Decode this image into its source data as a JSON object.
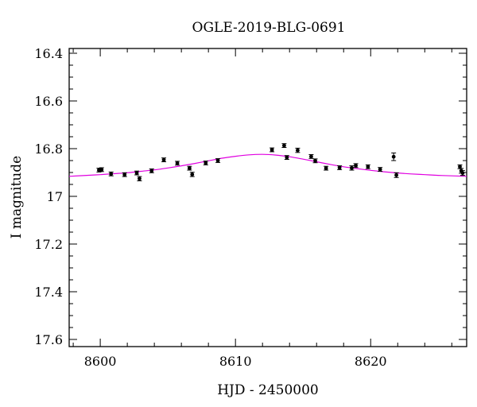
{
  "chart_data": {
    "type": "scatter",
    "title": "OGLE-2019-BLG-0691",
    "xlabel": "HJD - 2450000",
    "ylabel": "I magnitude",
    "xlim": [
      8597.7,
      8627.1
    ],
    "ylim": [
      17.63,
      16.38
    ],
    "y_inverted": true,
    "grid": false,
    "xticks": [
      {
        "value": 8600,
        "label": "8600"
      },
      {
        "value": 8610,
        "label": "8610"
      },
      {
        "value": 8620,
        "label": "8620"
      }
    ],
    "yticks": [
      {
        "value": 16.4,
        "label": "16.4"
      },
      {
        "value": 16.6,
        "label": "16.6"
      },
      {
        "value": 16.8,
        "label": "16.8"
      },
      {
        "value": 17.0,
        "label": "17"
      },
      {
        "value": 17.2,
        "label": "17.2"
      },
      {
        "value": 17.4,
        "label": "17.4"
      },
      {
        "value": 17.6,
        "label": "17.6"
      }
    ],
    "series": [
      {
        "kind": "data-points",
        "color": "#000000",
        "points": [
          {
            "x": 8599.9,
            "y": 16.89,
            "err": 0.008
          },
          {
            "x": 8600.1,
            "y": 16.888,
            "err": 0.008
          },
          {
            "x": 8600.8,
            "y": 16.906,
            "err": 0.008
          },
          {
            "x": 8601.8,
            "y": 16.909,
            "err": 0.008
          },
          {
            "x": 8602.7,
            "y": 16.902,
            "err": 0.008
          },
          {
            "x": 8602.9,
            "y": 16.926,
            "err": 0.009
          },
          {
            "x": 8603.8,
            "y": 16.893,
            "err": 0.008
          },
          {
            "x": 8604.7,
            "y": 16.847,
            "err": 0.008
          },
          {
            "x": 8605.7,
            "y": 16.861,
            "err": 0.008
          },
          {
            "x": 8606.6,
            "y": 16.882,
            "err": 0.008
          },
          {
            "x": 8606.8,
            "y": 16.908,
            "err": 0.009
          },
          {
            "x": 8607.8,
            "y": 16.86,
            "err": 0.008
          },
          {
            "x": 8608.7,
            "y": 16.85,
            "err": 0.008
          },
          {
            "x": 8612.7,
            "y": 16.805,
            "err": 0.008
          },
          {
            "x": 8613.6,
            "y": 16.787,
            "err": 0.008
          },
          {
            "x": 8613.8,
            "y": 16.837,
            "err": 0.008
          },
          {
            "x": 8614.6,
            "y": 16.807,
            "err": 0.009
          },
          {
            "x": 8615.6,
            "y": 16.833,
            "err": 0.008
          },
          {
            "x": 8615.9,
            "y": 16.851,
            "err": 0.008
          },
          {
            "x": 8616.7,
            "y": 16.882,
            "err": 0.008
          },
          {
            "x": 8617.7,
            "y": 16.88,
            "err": 0.008
          },
          {
            "x": 8618.6,
            "y": 16.881,
            "err": 0.009
          },
          {
            "x": 8618.9,
            "y": 16.871,
            "err": 0.008
          },
          {
            "x": 8619.8,
            "y": 16.876,
            "err": 0.008
          },
          {
            "x": 8620.7,
            "y": 16.887,
            "err": 0.008
          },
          {
            "x": 8621.7,
            "y": 16.834,
            "err": 0.016
          },
          {
            "x": 8621.9,
            "y": 16.911,
            "err": 0.01
          },
          {
            "x": 8626.6,
            "y": 16.876,
            "err": 0.008
          },
          {
            "x": 8626.7,
            "y": 16.893,
            "err": 0.01
          },
          {
            "x": 8626.8,
            "y": 16.902,
            "err": 0.01
          }
        ]
      },
      {
        "kind": "model-curve",
        "color": "#e000e0",
        "x": [
          8597.7,
          8599,
          8600,
          8601,
          8602,
          8603,
          8604,
          8605,
          8606,
          8607,
          8608,
          8609,
          8610,
          8611,
          8612,
          8613,
          8614,
          8615,
          8616,
          8617,
          8618,
          8619,
          8620,
          8621,
          8622,
          8623,
          8624,
          8625,
          8626,
          8627.1
        ],
        "y": [
          16.916,
          16.912,
          16.909,
          16.905,
          16.901,
          16.895,
          16.889,
          16.881,
          16.872,
          16.862,
          16.851,
          16.84,
          16.832,
          16.826,
          16.824,
          16.827,
          16.834,
          16.844,
          16.855,
          16.866,
          16.876,
          16.884,
          16.891,
          16.897,
          16.902,
          16.906,
          16.909,
          16.912,
          16.914,
          16.916
        ]
      }
    ]
  }
}
